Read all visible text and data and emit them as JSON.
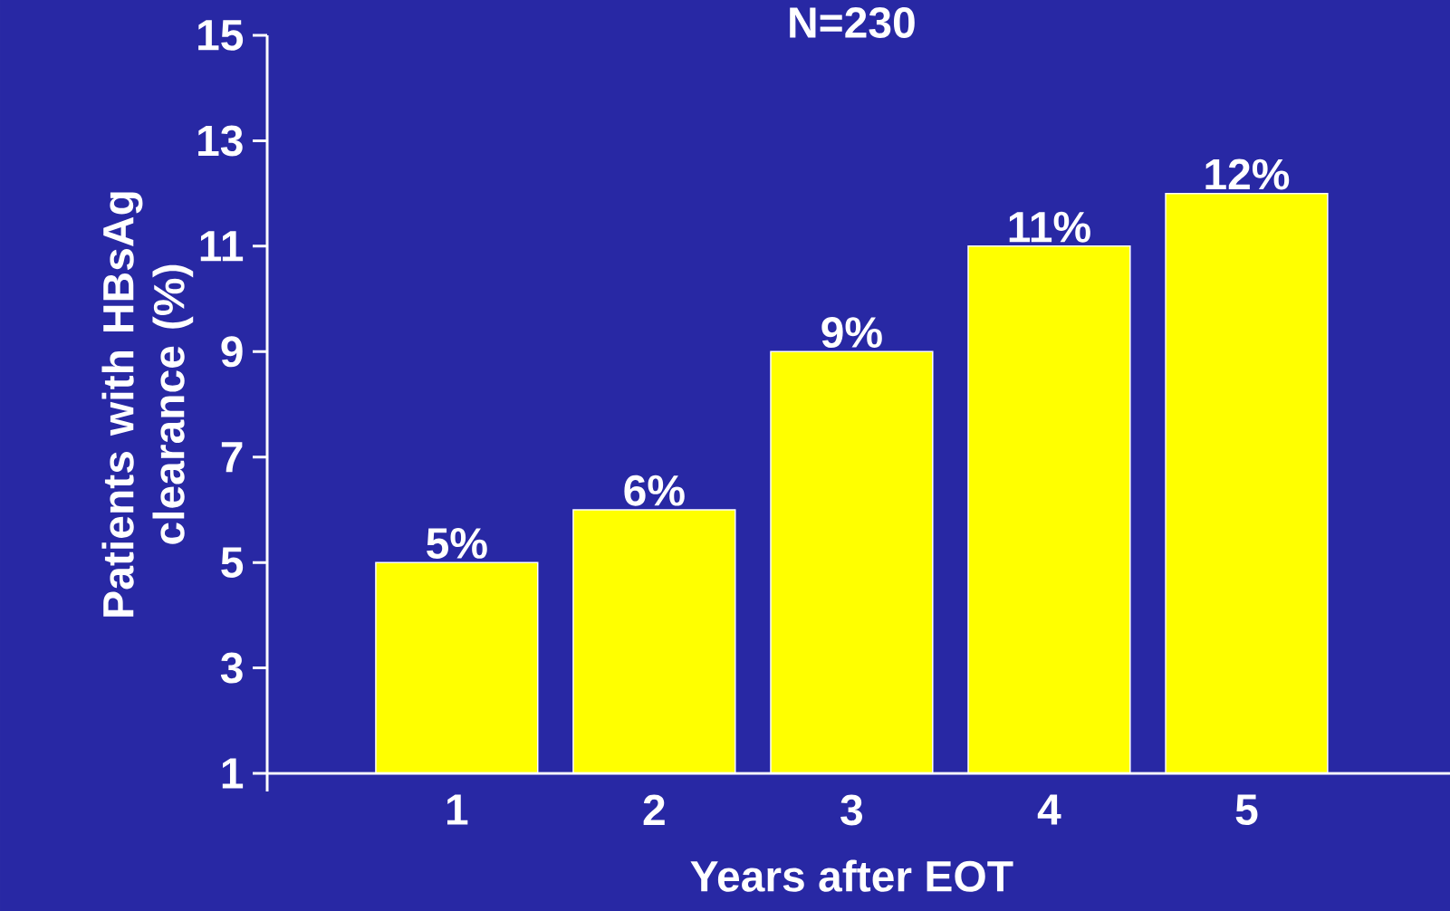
{
  "chart_data": {
    "type": "bar",
    "title": "N=230",
    "xlabel": "Years after EOT",
    "ylabel": "Patients with HBsAg clearance (%)",
    "categories": [
      "1",
      "2",
      "3",
      "4",
      "5"
    ],
    "values": [
      5,
      6,
      9,
      11,
      12
    ],
    "value_labels": [
      "5%",
      "6%",
      "9%",
      "11%",
      "12%"
    ],
    "color": "#ffff00",
    "ylim": [
      1,
      15
    ],
    "yticks": [
      1,
      3,
      5,
      7,
      9,
      11,
      13,
      15
    ],
    "grid": false
  }
}
